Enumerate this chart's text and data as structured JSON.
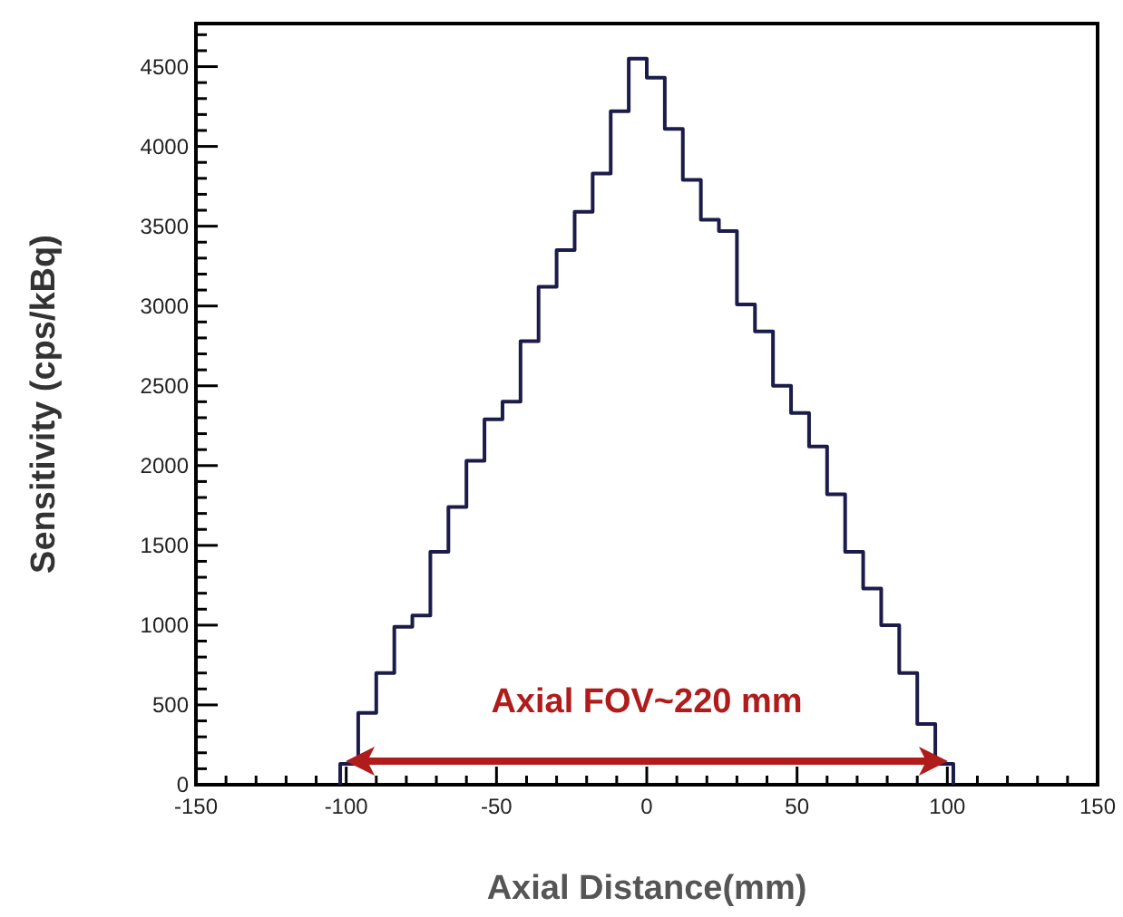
{
  "chart_data": {
    "type": "histogram",
    "xlabel": "Axial Distance(mm)",
    "ylabel": "Sensitivity (cps/kBq)",
    "bins": [
      -102,
      -96,
      -90,
      -84,
      -78,
      -72,
      -66,
      -60,
      -54,
      -48,
      -42,
      -36,
      -30,
      -24,
      -18,
      -12,
      -6,
      0,
      6,
      12,
      18,
      24,
      30,
      36,
      42,
      48,
      54,
      60,
      66,
      72,
      78,
      84,
      90,
      96,
      102
    ],
    "values": [
      130,
      450,
      700,
      990,
      1060,
      1460,
      1740,
      2030,
      2290,
      2400,
      2780,
      3120,
      3350,
      3590,
      3830,
      4220,
      4550,
      4430,
      4110,
      3790,
      3540,
      3470,
      3010,
      2840,
      2500,
      2330,
      2120,
      1820,
      1460,
      1230,
      1000,
      700,
      380,
      130
    ],
    "color": "#1c1c4a",
    "xlim": [
      -150,
      150
    ],
    "ylim": [
      0,
      4770
    ],
    "xticks": [
      -150,
      {
        "value": -140,
        "label": null
      },
      {
        "value": -130,
        "label": null
      },
      {
        "value": -120,
        "label": null
      },
      {
        "value": -110,
        "label": null
      },
      -100,
      {
        "value": -90,
        "label": null
      },
      {
        "value": -80,
        "label": null
      },
      {
        "value": -70,
        "label": null
      },
      {
        "value": -60,
        "label": null
      },
      -50,
      {
        "value": -40,
        "label": null
      },
      {
        "value": -30,
        "label": null
      },
      {
        "value": -20,
        "label": null
      },
      {
        "value": -10,
        "label": null
      },
      0,
      {
        "value": 10,
        "label": null
      },
      {
        "value": 20,
        "label": null
      },
      {
        "value": 30,
        "label": null
      },
      {
        "value": 40,
        "label": null
      },
      50,
      {
        "value": 60,
        "label": null
      },
      {
        "value": 70,
        "label": null
      },
      {
        "value": 80,
        "label": null
      },
      {
        "value": 90,
        "label": null
      },
      100,
      {
        "value": 110,
        "label": null
      },
      {
        "value": 120,
        "label": null
      },
      {
        "value": 130,
        "label": null
      },
      {
        "value": 140,
        "label": null
      },
      150
    ],
    "yticks": [
      0,
      {
        "value": 100,
        "label": null
      },
      {
        "value": 200,
        "label": null
      },
      {
        "value": 300,
        "label": null
      },
      {
        "value": 400,
        "label": null
      },
      500,
      {
        "value": 600,
        "label": null
      },
      {
        "value": 700,
        "label": null
      },
      {
        "value": 800,
        "label": null
      },
      {
        "value": 900,
        "label": null
      },
      1000,
      {
        "value": 1100,
        "label": null
      },
      {
        "value": 1200,
        "label": null
      },
      {
        "value": 1300,
        "label": null
      },
      {
        "value": 1400,
        "label": null
      },
      1500,
      {
        "value": 1600,
        "label": null
      },
      {
        "value": 1700,
        "label": null
      },
      {
        "value": 1800,
        "label": null
      },
      {
        "value": 1900,
        "label": null
      },
      2000,
      {
        "value": 2100,
        "label": null
      },
      {
        "value": 2200,
        "label": null
      },
      {
        "value": 2300,
        "label": null
      },
      {
        "value": 2400,
        "label": null
      },
      2500,
      {
        "value": 2600,
        "label": null
      },
      {
        "value": 2700,
        "label": null
      },
      {
        "value": 2800,
        "label": null
      },
      {
        "value": 2900,
        "label": null
      },
      3000,
      {
        "value": 3100,
        "label": null
      },
      {
        "value": 3200,
        "label": null
      },
      {
        "value": 3300,
        "label": null
      },
      {
        "value": 3400,
        "label": null
      },
      3500,
      {
        "value": 3600,
        "label": null
      },
      {
        "value": 3700,
        "label": null
      },
      {
        "value": 3800,
        "label": null
      },
      {
        "value": 3900,
        "label": null
      },
      4000,
      {
        "value": 4100,
        "label": null
      },
      {
        "value": 4200,
        "label": null
      },
      {
        "value": 4300,
        "label": null
      },
      {
        "value": 4400,
        "label": null
      },
      4500,
      {
        "value": 4600,
        "label": null
      },
      {
        "value": 4700,
        "label": null
      }
    ],
    "annotations": [
      "Axial FOV~220 mm"
    ]
  }
}
